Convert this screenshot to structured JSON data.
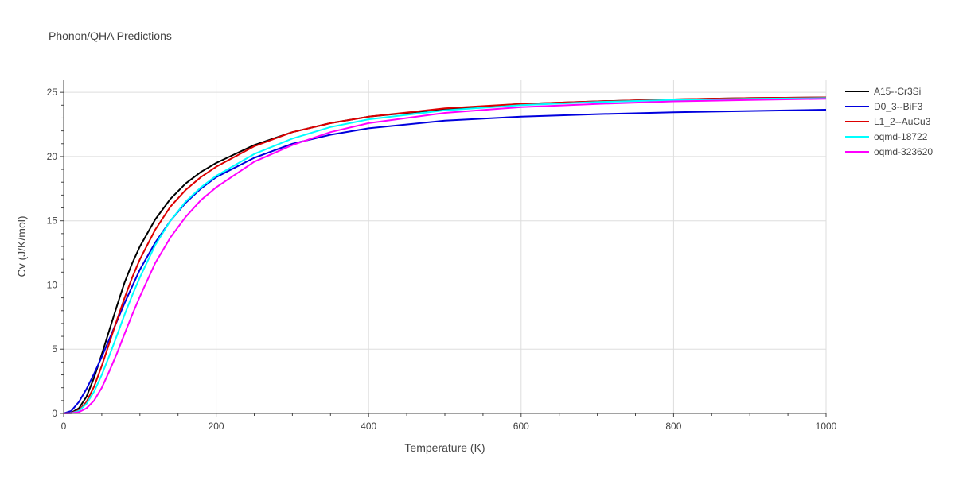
{
  "chart_data": {
    "type": "line",
    "title": "Phonon/QHA Predictions",
    "xlabel": "Temperature (K)",
    "ylabel": "Cv (J/K/mol)",
    "xlim": [
      0,
      1000
    ],
    "ylim": [
      0,
      26
    ],
    "xticks": [
      0,
      200,
      400,
      600,
      800,
      1000
    ],
    "yticks": [
      0,
      5,
      10,
      15,
      20,
      25
    ],
    "grid": true,
    "legend_position": "right",
    "series": [
      {
        "name": "A15--Cr3Si",
        "color": "#000000",
        "x": [
          0,
          10,
          20,
          30,
          40,
          50,
          60,
          70,
          80,
          90,
          100,
          120,
          140,
          160,
          180,
          200,
          250,
          300,
          350,
          400,
          500,
          600,
          700,
          800,
          900,
          1000
        ],
        "y": [
          0,
          0.05,
          0.4,
          1.3,
          2.8,
          4.6,
          6.5,
          8.4,
          10.2,
          11.7,
          13.0,
          15.1,
          16.7,
          17.9,
          18.8,
          19.5,
          20.9,
          21.9,
          22.6,
          23.1,
          23.7,
          24.1,
          24.3,
          24.45,
          24.55,
          24.6
        ]
      },
      {
        "name": "D0_3--BiF3",
        "color": "#0000dd",
        "x": [
          0,
          10,
          20,
          30,
          40,
          50,
          60,
          70,
          80,
          90,
          100,
          120,
          140,
          160,
          180,
          200,
          250,
          300,
          350,
          400,
          500,
          600,
          700,
          800,
          900,
          1000
        ],
        "y": [
          0,
          0.2,
          0.9,
          1.9,
          3.1,
          4.4,
          5.8,
          7.2,
          8.6,
          9.9,
          11.2,
          13.3,
          15.0,
          16.4,
          17.5,
          18.4,
          19.9,
          21.0,
          21.7,
          22.2,
          22.8,
          23.1,
          23.3,
          23.45,
          23.55,
          23.65
        ]
      },
      {
        "name": "L1_2--AuCu3",
        "color": "#dd0000",
        "x": [
          0,
          10,
          20,
          30,
          40,
          50,
          60,
          70,
          80,
          90,
          100,
          120,
          140,
          160,
          180,
          200,
          250,
          300,
          350,
          400,
          500,
          600,
          700,
          800,
          900,
          1000
        ],
        "y": [
          0,
          0.03,
          0.25,
          0.9,
          2.1,
          3.7,
          5.5,
          7.3,
          9.0,
          10.6,
          12.0,
          14.3,
          16.1,
          17.4,
          18.4,
          19.2,
          20.8,
          21.9,
          22.6,
          23.1,
          23.75,
          24.1,
          24.3,
          24.45,
          24.55,
          24.6
        ]
      },
      {
        "name": "oqmd-18722",
        "color": "#00ffff",
        "x": [
          0,
          10,
          20,
          30,
          40,
          50,
          60,
          70,
          80,
          90,
          100,
          120,
          140,
          160,
          180,
          200,
          250,
          300,
          350,
          400,
          500,
          600,
          700,
          800,
          900,
          1000
        ],
        "y": [
          0,
          0.02,
          0.2,
          0.75,
          1.7,
          3.0,
          4.5,
          6.1,
          7.7,
          9.2,
          10.6,
          13.1,
          15.0,
          16.5,
          17.6,
          18.5,
          20.2,
          21.4,
          22.3,
          22.9,
          23.6,
          24.0,
          24.25,
          24.4,
          24.5,
          24.55
        ]
      },
      {
        "name": "oqmd-323620",
        "color": "#ff00ff",
        "x": [
          0,
          10,
          20,
          30,
          40,
          50,
          60,
          70,
          80,
          90,
          100,
          120,
          140,
          160,
          180,
          200,
          250,
          300,
          350,
          400,
          500,
          600,
          700,
          800,
          900,
          1000
        ],
        "y": [
          0,
          0.01,
          0.1,
          0.4,
          1.0,
          2.0,
          3.3,
          4.7,
          6.2,
          7.7,
          9.1,
          11.7,
          13.7,
          15.3,
          16.6,
          17.6,
          19.6,
          20.9,
          21.9,
          22.6,
          23.4,
          23.85,
          24.1,
          24.3,
          24.4,
          24.5
        ]
      }
    ]
  }
}
